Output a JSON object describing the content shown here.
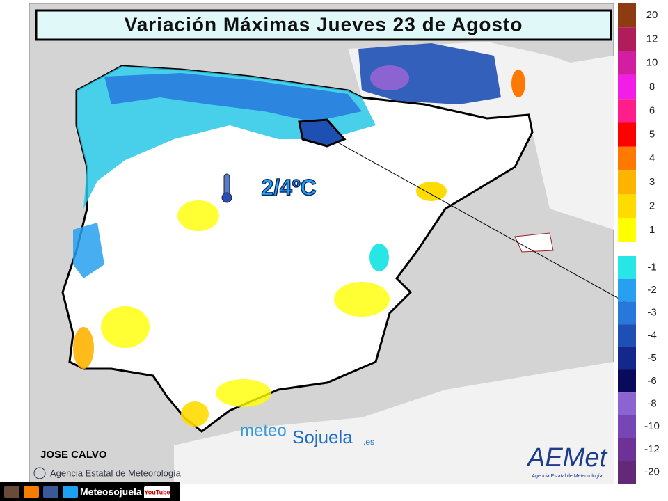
{
  "header": {
    "title": "Variación Máximas Jueves 23 de Agosto"
  },
  "legend": {
    "positive": [
      {
        "label": "20",
        "color": "#8c3c10"
      },
      {
        "label": "12",
        "color": "#b01e5a"
      },
      {
        "label": "10",
        "color": "#d21ea0"
      },
      {
        "label": "8",
        "color": "#f01ee6"
      },
      {
        "label": "6",
        "color": "#ff1e8c"
      },
      {
        "label": "5",
        "color": "#ff0000"
      },
      {
        "label": "4",
        "color": "#ff7800"
      },
      {
        "label": "3",
        "color": "#ffb400"
      },
      {
        "label": "2",
        "color": "#ffdc00"
      },
      {
        "label": "1",
        "color": "#ffff00"
      }
    ],
    "negative": [
      {
        "label": "-1",
        "color": "#28e6e6"
      },
      {
        "label": "-2",
        "color": "#28a0f0"
      },
      {
        "label": "-3",
        "color": "#2878dc"
      },
      {
        "label": "-4",
        "color": "#1e50b4"
      },
      {
        "label": "-5",
        "color": "#14288c"
      },
      {
        "label": "-6",
        "color": "#0a0a5a"
      },
      {
        "label": "-8",
        "color": "#8c64d2"
      },
      {
        "label": "-10",
        "color": "#7846b4"
      },
      {
        "label": "-12",
        "color": "#6e3296"
      },
      {
        "label": "-20",
        "color": "#642878"
      }
    ]
  },
  "annotation": "2/4ºC",
  "author": "JOSE CALVO",
  "credit": "Agencia Estatal de Meteorología",
  "watermark": {
    "left": "meteo",
    "right": "Sojuela",
    "suffix": ".es"
  },
  "logo": {
    "name": "AEMet",
    "subtitle": "Agencia Estatal de Meteorología"
  },
  "footer": {
    "site": "Meteosojuela",
    "video": "YouTube"
  }
}
